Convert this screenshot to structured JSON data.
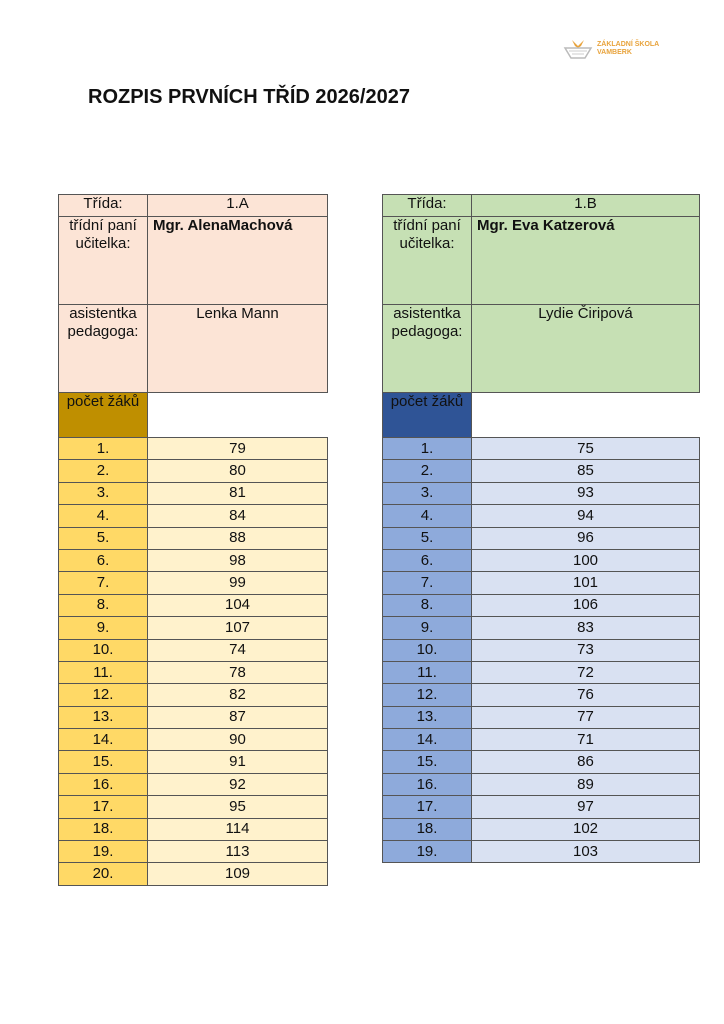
{
  "logo": {
    "text_line1": "ZÁKLADNÍ ŠKOLA",
    "text_line2": "VAMBERK",
    "color": "#e8a33c"
  },
  "title": "ROZPIS PRVNÍCH TŘÍD 2026/2027",
  "classes": [
    {
      "class_label": "Třída:",
      "class_name": "1.A",
      "teacher_label": "třídní paní učitelka:",
      "teacher": "Mgr. AlenaMachová",
      "assistant_label": "asistentka pedagoga:",
      "assistant": "Lenka Mann",
      "count_label": "počet žáků",
      "colors": {
        "header": "#fce4d6",
        "count": "#bf8f00",
        "index": "#ffd966",
        "value": "#fff2cc"
      },
      "rows": [
        [
          "1.",
          "79"
        ],
        [
          "2.",
          "80"
        ],
        [
          "3.",
          "81"
        ],
        [
          "4.",
          "84"
        ],
        [
          "5.",
          "88"
        ],
        [
          "6.",
          "98"
        ],
        [
          "7.",
          "99"
        ],
        [
          "8.",
          "104"
        ],
        [
          "9.",
          "107"
        ],
        [
          "10.",
          "74"
        ],
        [
          "11.",
          "78"
        ],
        [
          "12.",
          "82"
        ],
        [
          "13.",
          "87"
        ],
        [
          "14.",
          "90"
        ],
        [
          "15.",
          "91"
        ],
        [
          "16.",
          "92"
        ],
        [
          "17.",
          "95"
        ],
        [
          "18.",
          "114"
        ],
        [
          "19.",
          "113"
        ],
        [
          "20.",
          "109"
        ]
      ]
    },
    {
      "class_label": "Třída:",
      "class_name": "1.B",
      "teacher_label": "třídní paní učitelka:",
      "teacher": "Mgr. Eva Katzerová",
      "assistant_label": "asistentka pedagoga:",
      "assistant": "Lydie Čiripová",
      "count_label": "počet žáků",
      "colors": {
        "header": "#c6e0b4",
        "count": "#2f5496",
        "index": "#8eaadb",
        "value": "#d9e1f2"
      },
      "rows": [
        [
          "1.",
          "75"
        ],
        [
          "2.",
          "85"
        ],
        [
          "3.",
          "93"
        ],
        [
          "4.",
          "94"
        ],
        [
          "5.",
          "96"
        ],
        [
          "6.",
          "100"
        ],
        [
          "7.",
          "101"
        ],
        [
          "8.",
          "106"
        ],
        [
          "9.",
          "83"
        ],
        [
          "10.",
          "73"
        ],
        [
          "11.",
          "72"
        ],
        [
          "12.",
          "76"
        ],
        [
          "13.",
          "77"
        ],
        [
          "14.",
          "71"
        ],
        [
          "15.",
          "86"
        ],
        [
          "16.",
          "89"
        ],
        [
          "17.",
          "97"
        ],
        [
          "18.",
          "102"
        ],
        [
          "19.",
          "103"
        ]
      ]
    }
  ]
}
